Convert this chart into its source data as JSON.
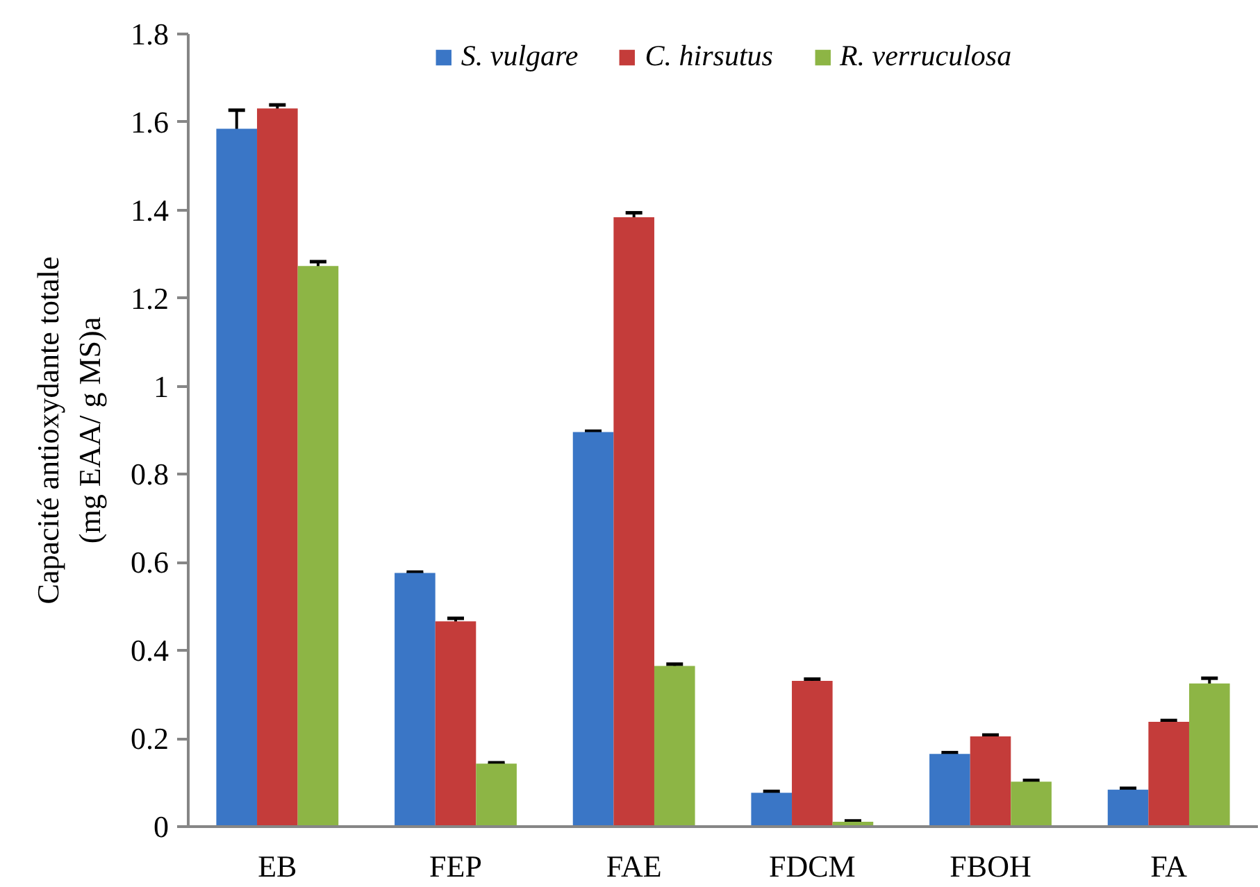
{
  "chart_data": {
    "type": "bar",
    "ylabel": "Capacité antioxydante totale\n(mg EAA/ g MS)a",
    "categories": [
      "EB",
      "FEP",
      "FAE",
      "FDCM",
      "FBOH",
      "FA"
    ],
    "series": [
      {
        "name": "S. vulgare",
        "color": "#3a76c6",
        "values": [
          1.585,
          0.576,
          0.896,
          0.077,
          0.165,
          0.084
        ],
        "errors": [
          0.042,
          0.002,
          0.002,
          0.003,
          0.003,
          0.003
        ]
      },
      {
        "name": "C. hirsutus",
        "color": "#c43c3a",
        "values": [
          1.631,
          0.466,
          1.384,
          0.331,
          0.205,
          0.238
        ],
        "errors": [
          0.008,
          0.007,
          0.01,
          0.004,
          0.003,
          0.003
        ]
      },
      {
        "name": "R. verruculosa",
        "color": "#8db545",
        "values": [
          1.273,
          0.143,
          0.365,
          0.011,
          0.102,
          0.325
        ],
        "errors": [
          0.01,
          0.002,
          0.004,
          0.002,
          0.003,
          0.012
        ]
      }
    ],
    "ylim": [
      0,
      1.8
    ],
    "yticks": [
      0,
      0.2,
      0.4,
      0.6,
      0.8,
      1,
      1.2,
      1.4,
      1.6,
      1.8
    ],
    "grid": false,
    "legend": "top"
  }
}
